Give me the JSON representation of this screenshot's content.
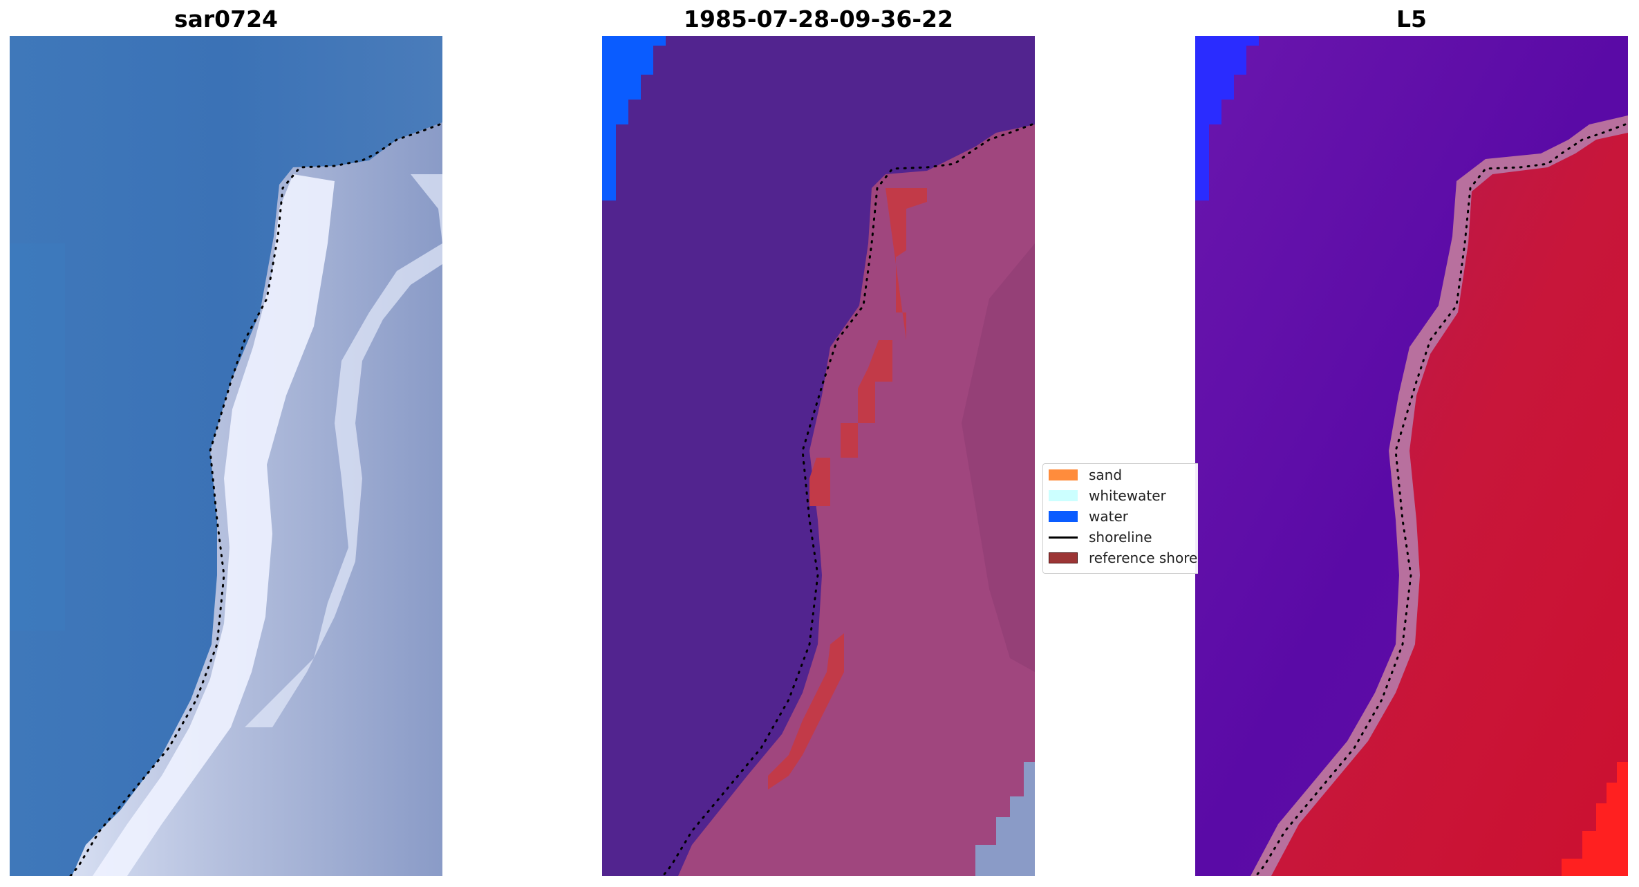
{
  "panels": [
    {
      "title": "sar0724"
    },
    {
      "title": "1985-07-28-09-36-22"
    },
    {
      "title": "L5"
    }
  ],
  "legend": {
    "items": [
      {
        "label": "sand",
        "color": "#ff8c3c",
        "kind": "patch"
      },
      {
        "label": "whitewater",
        "color": "#ccffff",
        "kind": "patch"
      },
      {
        "label": "water",
        "color": "#0a5cff",
        "kind": "patch"
      },
      {
        "label": "shoreline",
        "color": "#000000",
        "kind": "line"
      },
      {
        "label": "reference shoreline",
        "color": "#9c3535",
        "kind": "patch"
      }
    ]
  },
  "colors": {
    "rgb_water": "#3a74b8",
    "rgb_land": "#a9b5d8",
    "rgb_surf": "#f2f5ff",
    "class_water": "#52248f",
    "class_land": "#a0467e",
    "class_reference": "#c23a48",
    "class_topleft_water": "#0a5cff",
    "class_gray_corner": "#8a9bc7",
    "prob_water": "#6210a8",
    "prob_land": "#c8163a",
    "prob_band": "#b8709e",
    "prob_topleft": "#2a2cff",
    "prob_bright": "#ff2020",
    "shoreline": "#000000"
  }
}
